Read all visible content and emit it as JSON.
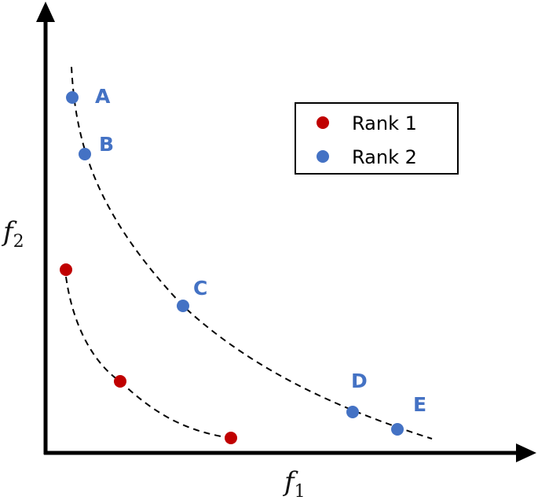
{
  "colors": {
    "rank1": "#c00000",
    "rank2": "#4472c4",
    "axis": "#000000",
    "curve": "#000000"
  },
  "axes": {
    "x_label": "f",
    "x_subscript": "1",
    "y_label": "f",
    "y_subscript": "2"
  },
  "legend": {
    "items": [
      {
        "label": "Rank 1",
        "color": "#c00000"
      },
      {
        "label": "Rank 2",
        "color": "#4472c4"
      }
    ]
  },
  "points": {
    "rank2": [
      {
        "label": "A"
      },
      {
        "label": "B"
      },
      {
        "label": "C"
      },
      {
        "label": "D"
      },
      {
        "label": "E"
      }
    ],
    "rank1": [
      {
        "label": ""
      },
      {
        "label": ""
      },
      {
        "label": ""
      }
    ]
  }
}
